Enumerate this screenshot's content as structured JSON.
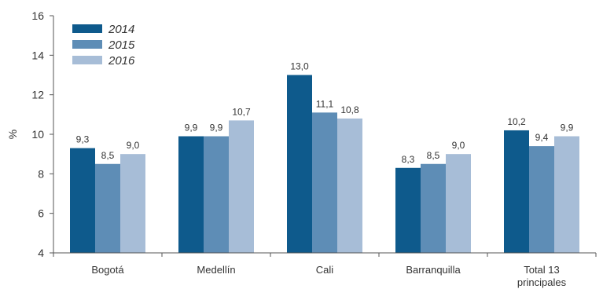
{
  "chart_data": {
    "type": "bar",
    "ylabel": "%",
    "ylim": [
      4,
      16
    ],
    "yticks": [
      "4",
      "6",
      "8",
      "10",
      "12",
      "14",
      "16"
    ],
    "categories": [
      [
        "Bogotá"
      ],
      [
        "Medellín"
      ],
      [
        "Cali"
      ],
      [
        "Barranquilla"
      ],
      [
        "Total 13",
        "principales"
      ]
    ],
    "series": [
      {
        "name": "2014",
        "color": "#0e5a8c",
        "values": [
          9.3,
          9.9,
          13.0,
          8.3,
          10.2
        ],
        "labels": [
          "9,3",
          "9,9",
          "13,0",
          "8,3",
          "10,2"
        ]
      },
      {
        "name": "2015",
        "color": "#5e8db6",
        "values": [
          8.5,
          9.9,
          11.1,
          8.5,
          9.4
        ],
        "labels": [
          "8,5",
          "9,9",
          "11,1",
          "8,5",
          "9,4"
        ]
      },
      {
        "name": "2016",
        "color": "#a7bdd7",
        "values": [
          9.0,
          10.7,
          10.8,
          9.0,
          9.9
        ],
        "labels": [
          "9,0",
          "10,7",
          "10,8",
          "9,0",
          "9,9"
        ]
      }
    ],
    "grid": false,
    "legend_position": "top-left"
  }
}
